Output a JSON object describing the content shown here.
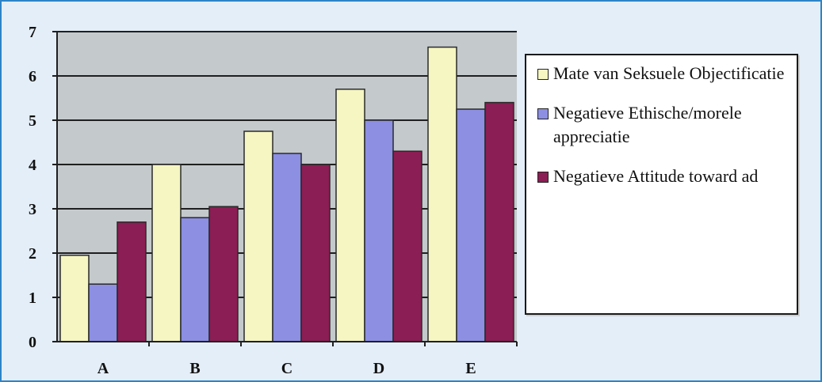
{
  "chart_data": {
    "type": "bar",
    "categories": [
      "A",
      "B",
      "C",
      "D",
      "E"
    ],
    "series": [
      {
        "name": "Mate van Seksuele Objectificatie",
        "color": "#f6f6c2",
        "values": [
          1.95,
          4.0,
          4.75,
          5.7,
          6.65
        ]
      },
      {
        "name": "Negatieve Ethische/morele appreciatie",
        "color": "#8c8fe2",
        "values": [
          1.3,
          2.8,
          4.25,
          5.0,
          5.25
        ]
      },
      {
        "name": "Negatieve Attitude toward ad",
        "color": "#8b1e54",
        "values": [
          2.7,
          3.05,
          4.0,
          4.3,
          5.4
        ]
      }
    ],
    "yticks": [
      "0",
      "1",
      "2",
      "3",
      "4",
      "5",
      "6",
      "7"
    ],
    "ylim": [
      0,
      7
    ],
    "grid": true,
    "legend_position": "right",
    "plot_background": "#c4c9cc"
  }
}
